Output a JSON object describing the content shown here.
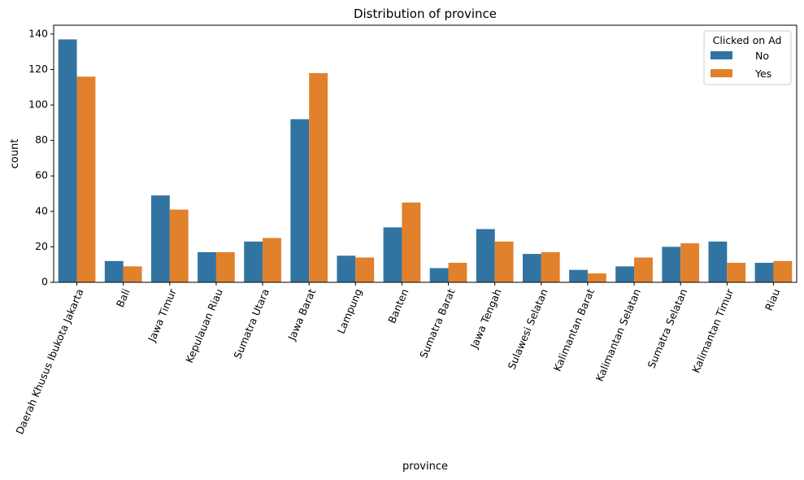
{
  "chart_data": {
    "type": "bar",
    "title": "Distribution of province",
    "xlabel": "province",
    "ylabel": "count",
    "ylim": [
      0,
      145
    ],
    "yticks": [
      0,
      20,
      40,
      60,
      80,
      100,
      120,
      140
    ],
    "categories": [
      "Daerah Khusus Ibukota Jakarta",
      "Bali",
      "Jawa Timur",
      "Kepulauan Riau",
      "Sumatra Utara",
      "Jawa Barat",
      "Lampung",
      "Banten",
      "Sumatra Barat",
      "Jawa Tengah",
      "Sulawesi Selatan",
      "Kalimantan Barat",
      "Kalimantan Selatan",
      "Sumatra Selatan",
      "Kalimantan Timur",
      "Riau"
    ],
    "series": [
      {
        "name": "No",
        "color": "#3274a1",
        "values": [
          137,
          12,
          49,
          17,
          23,
          92,
          15,
          31,
          8,
          30,
          16,
          7,
          9,
          20,
          23,
          11
        ]
      },
      {
        "name": "Yes",
        "color": "#e1812c",
        "values": [
          116,
          9,
          41,
          17,
          25,
          118,
          14,
          45,
          11,
          23,
          17,
          5,
          14,
          22,
          11,
          12
        ]
      }
    ],
    "legend": {
      "title": "Clicked on Ad",
      "position": "upper-right"
    },
    "grid": false
  }
}
